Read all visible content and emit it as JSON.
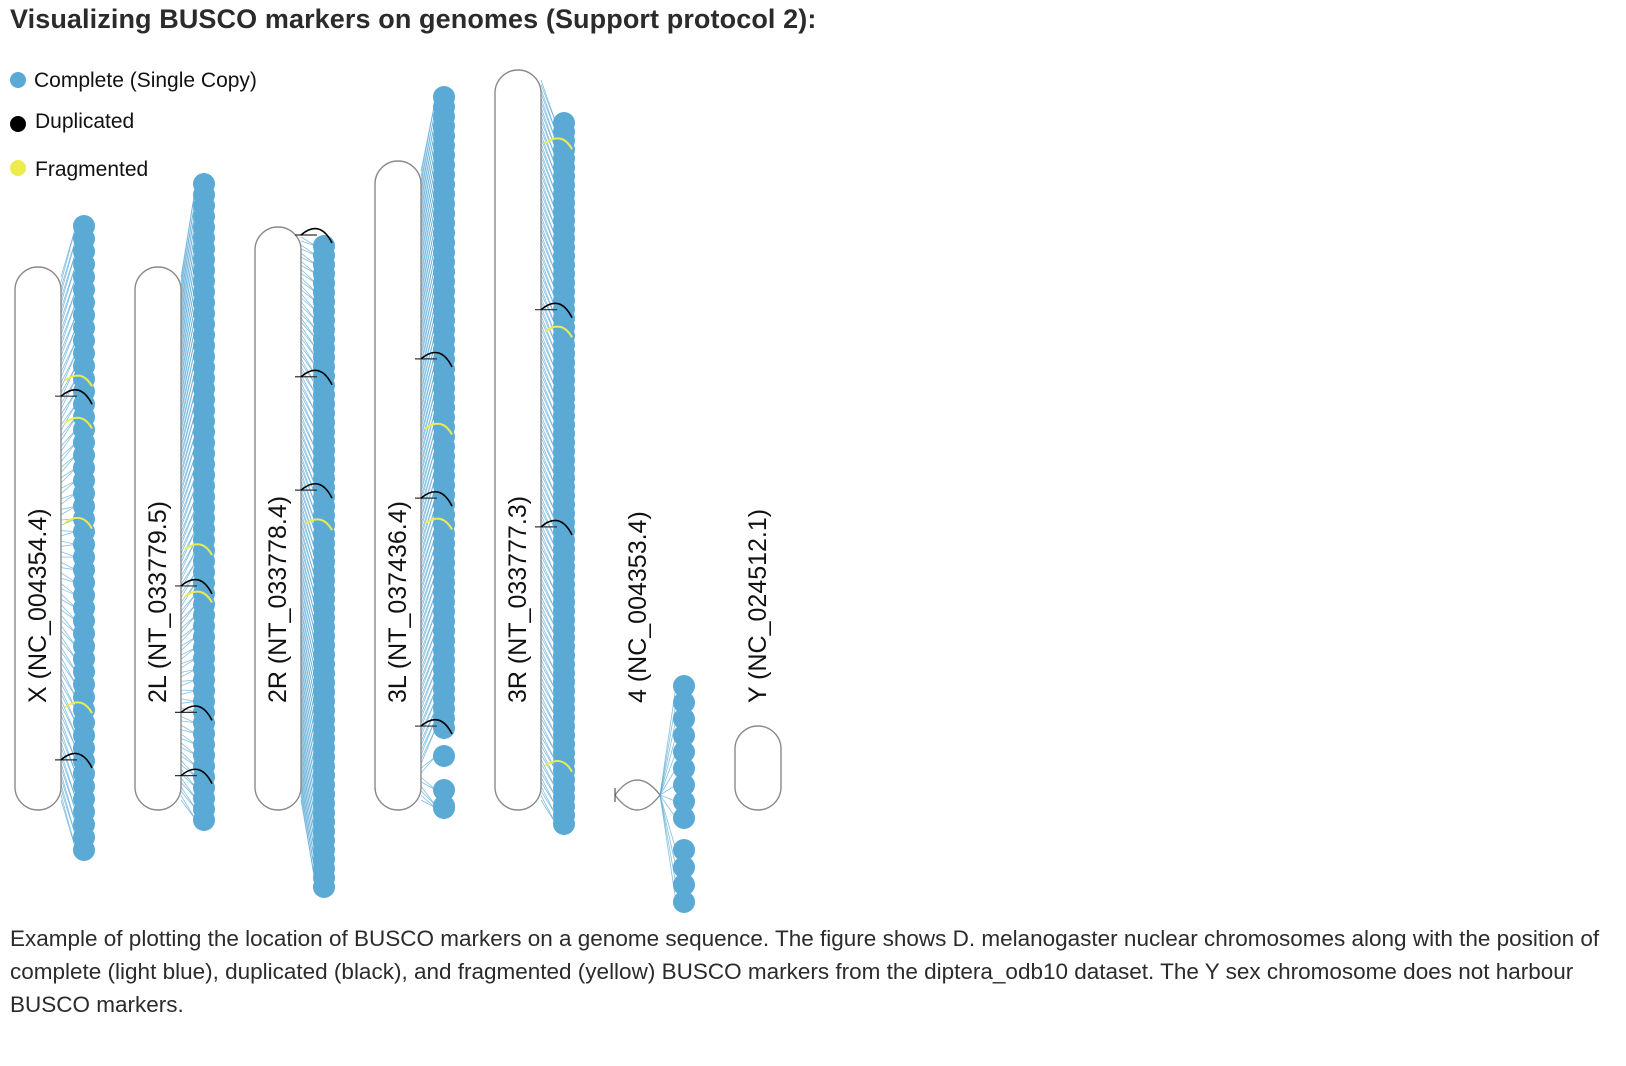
{
  "title": "Visualizing BUSCO markers on genomes (Support protocol 2):",
  "legend": [
    {
      "label": "Complete (Single Copy)",
      "color": "#5BAAD5",
      "icon": "circle"
    },
    {
      "label": "Duplicated",
      "color": "#000000",
      "icon": "circle"
    },
    {
      "label": "Fragmented",
      "color": "#ECEC4E",
      "icon": "circle"
    }
  ],
  "chromosomes": [
    {
      "id": "x",
      "label": "X (NC_004354.4)",
      "marker_count": 50,
      "duplicated_at": [
        0.23,
        0.92
      ],
      "fragmented_at": [
        0.2,
        0.28,
        0.47,
        0.82
      ]
    },
    {
      "id": "2l",
      "label": "2L (NT_033779.5)",
      "marker_count": 60,
      "duplicated_at": [
        0.59,
        0.83,
        0.95
      ],
      "fragmented_at": [
        0.52,
        0.61
      ]
    },
    {
      "id": "2r",
      "label": "2R (NT_033778.4)",
      "marker_count": 70,
      "duplicated_at": [
        0.0,
        0.25,
        0.45
      ],
      "fragmented_at": [
        0.51
      ]
    },
    {
      "id": "3l",
      "label": "3L (NT_037436.4)",
      "marker_count": 70,
      "duplicated_at": [
        0.3,
        0.52,
        0.88
      ],
      "fragmented_at": [
        0.41,
        0.56
      ]
    },
    {
      "id": "3r",
      "label": "3R (NT_033777.3)",
      "marker_count": 80,
      "duplicated_at": [
        0.32,
        0.62
      ],
      "fragmented_at": [
        0.09,
        0.35,
        0.95
      ]
    },
    {
      "id": "4",
      "label": "4 (NC_004353.4)",
      "marker_count": 13,
      "duplicated_at": [],
      "fragmented_at": []
    },
    {
      "id": "y",
      "label": "Y (NC_024512.1)",
      "marker_count": 0,
      "duplicated_at": [],
      "fragmented_at": []
    }
  ],
  "caption": "Example of plotting the location of BUSCO markers on a genome sequence. The figure shows D. melanogaster nuclear chromosomes along with the position of complete (light blue), duplicated (black), and fragmented (yellow) BUSCO markers from the diptera_odb10 dataset. The Y sex chromosome does not harbour BUSCO markers."
}
